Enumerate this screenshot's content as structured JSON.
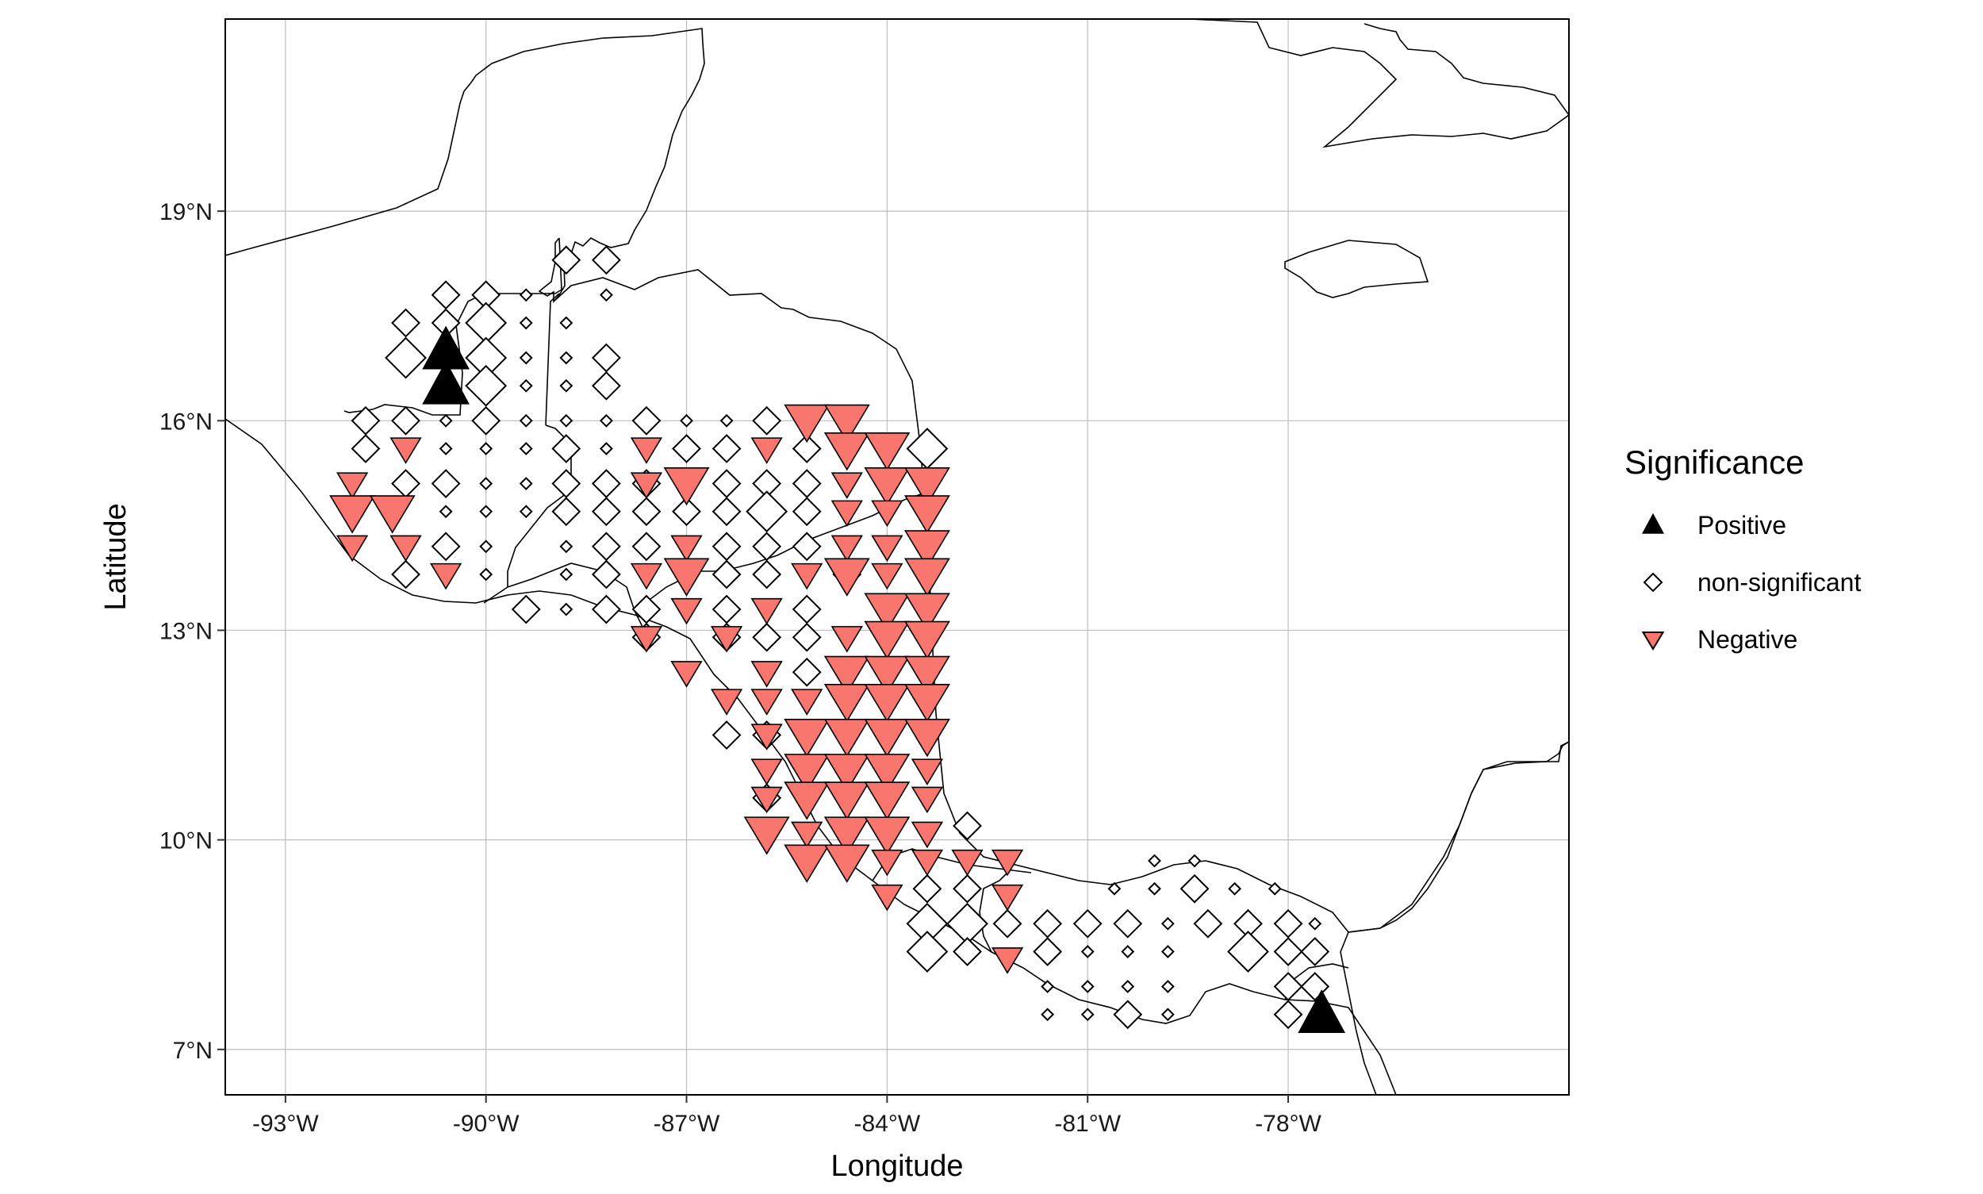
{
  "chart_data": {
    "type": "scatter",
    "title": "",
    "xlabel": "Longitude",
    "ylabel": "Latitude",
    "xlim": [
      -93.9,
      -73.8
    ],
    "ylim": [
      6.35,
      21.75
    ],
    "grid": true,
    "x_ticks": [
      -93,
      -90,
      -87,
      -84,
      -81,
      -78
    ],
    "x_tick_labels": [
      "-93°W",
      "-90°W",
      "-87°W",
      "-84°W",
      "-81°W",
      "-78°W"
    ],
    "y_ticks": [
      7,
      10,
      13,
      16,
      19
    ],
    "y_tick_labels": [
      "7°N",
      "10°N",
      "13°N",
      "16°N",
      "19°N"
    ],
    "legend": {
      "title": "Significance",
      "placement": "right",
      "entries": [
        {
          "label": "Positive",
          "shape": "triangle-up",
          "color": "#000000"
        },
        {
          "label": "non-significant",
          "shape": "diamond",
          "color": "#ffffff"
        },
        {
          "label": "Negative",
          "shape": "triangle-down",
          "color": "#f8766d"
        }
      ]
    },
    "series": [
      {
        "name": "Positive",
        "color": "#000000",
        "points": [
          [
            -90.6,
            17.0,
            3
          ],
          [
            -90.6,
            16.5,
            3
          ],
          [
            -77.5,
            7.5,
            3
          ]
        ]
      },
      {
        "name": "non-significant",
        "color": "#ffffff",
        "points": [
          [
            -91.2,
            17.4,
            2
          ],
          [
            -90.6,
            17.8,
            2
          ],
          [
            -90.0,
            17.8,
            2
          ],
          [
            -89.4,
            17.8,
            1
          ],
          [
            -88.8,
            18.3,
            2
          ],
          [
            -88.2,
            18.3,
            2
          ],
          [
            -91.2,
            16.9,
            3
          ],
          [
            -90.6,
            17.4,
            2
          ],
          [
            -90.0,
            17.4,
            3
          ],
          [
            -89.4,
            17.4,
            1
          ],
          [
            -88.8,
            17.4,
            1
          ],
          [
            -88.2,
            17.8,
            1
          ],
          [
            -90.0,
            16.9,
            3
          ],
          [
            -89.4,
            16.9,
            1
          ],
          [
            -88.8,
            16.9,
            1
          ],
          [
            -88.2,
            16.9,
            2
          ],
          [
            -90.0,
            16.5,
            3
          ],
          [
            -89.4,
            16.5,
            1
          ],
          [
            -88.8,
            16.5,
            1
          ],
          [
            -88.2,
            16.5,
            2
          ],
          [
            -91.8,
            16.0,
            2
          ],
          [
            -91.2,
            16.0,
            2
          ],
          [
            -90.6,
            16.0,
            1
          ],
          [
            -90.0,
            16.0,
            2
          ],
          [
            -89.4,
            16.0,
            1
          ],
          [
            -88.8,
            16.0,
            1
          ],
          [
            -88.2,
            16.0,
            1
          ],
          [
            -87.6,
            16.0,
            2
          ],
          [
            -87.0,
            16.0,
            1
          ],
          [
            -86.4,
            16.0,
            1
          ],
          [
            -85.8,
            16.0,
            2
          ],
          [
            -91.8,
            15.6,
            2
          ],
          [
            -90.6,
            15.6,
            1
          ],
          [
            -90.0,
            15.6,
            1
          ],
          [
            -89.4,
            15.6,
            1
          ],
          [
            -88.8,
            15.6,
            2
          ],
          [
            -88.2,
            15.6,
            1
          ],
          [
            -87.0,
            15.6,
            2
          ],
          [
            -86.4,
            15.6,
            2
          ],
          [
            -85.2,
            15.6,
            2
          ],
          [
            -83.4,
            15.6,
            3
          ],
          [
            -91.2,
            15.1,
            2
          ],
          [
            -90.6,
            15.1,
            2
          ],
          [
            -90.0,
            15.1,
            1
          ],
          [
            -89.4,
            15.1,
            1
          ],
          [
            -88.8,
            15.1,
            2
          ],
          [
            -88.2,
            15.1,
            2
          ],
          [
            -87.6,
            15.1,
            2
          ],
          [
            -86.4,
            15.1,
            2
          ],
          [
            -85.8,
            15.1,
            2
          ],
          [
            -85.2,
            15.1,
            2
          ],
          [
            -90.6,
            14.7,
            1
          ],
          [
            -90.0,
            14.7,
            1
          ],
          [
            -89.4,
            14.7,
            1
          ],
          [
            -88.8,
            14.7,
            2
          ],
          [
            -88.2,
            14.7,
            2
          ],
          [
            -87.6,
            14.7,
            2
          ],
          [
            -87.0,
            14.7,
            2
          ],
          [
            -86.4,
            14.7,
            2
          ],
          [
            -85.8,
            14.7,
            3
          ],
          [
            -85.2,
            14.7,
            2
          ],
          [
            -90.6,
            14.2,
            2
          ],
          [
            -90.0,
            14.2,
            1
          ],
          [
            -88.8,
            14.2,
            1
          ],
          [
            -88.2,
            14.2,
            2
          ],
          [
            -87.6,
            14.2,
            2
          ],
          [
            -86.4,
            14.2,
            2
          ],
          [
            -85.8,
            14.2,
            2
          ],
          [
            -85.2,
            14.2,
            2
          ],
          [
            -91.2,
            13.8,
            2
          ],
          [
            -90.0,
            13.8,
            1
          ],
          [
            -88.8,
            13.8,
            1
          ],
          [
            -88.2,
            13.8,
            2
          ],
          [
            -86.4,
            13.8,
            2
          ],
          [
            -85.8,
            13.8,
            2
          ],
          [
            -84.6,
            13.8,
            2
          ],
          [
            -89.4,
            13.3,
            2
          ],
          [
            -88.8,
            13.3,
            1
          ],
          [
            -88.2,
            13.3,
            2
          ],
          [
            -87.6,
            13.3,
            2
          ],
          [
            -86.4,
            13.3,
            2
          ],
          [
            -85.2,
            13.3,
            2
          ],
          [
            -87.6,
            12.9,
            2
          ],
          [
            -86.4,
            12.9,
            2
          ],
          [
            -85.8,
            12.9,
            2
          ],
          [
            -85.2,
            12.9,
            2
          ],
          [
            -85.2,
            12.4,
            2
          ],
          [
            -86.4,
            11.5,
            2
          ],
          [
            -85.8,
            11.5,
            2
          ],
          [
            -85.8,
            10.6,
            2
          ],
          [
            -82.8,
            10.2,
            2
          ],
          [
            -80.0,
            9.7,
            1
          ],
          [
            -79.4,
            9.7,
            1
          ],
          [
            -83.4,
            9.3,
            2
          ],
          [
            -82.8,
            9.3,
            2
          ],
          [
            -80.6,
            9.3,
            1
          ],
          [
            -80.0,
            9.3,
            1
          ],
          [
            -79.4,
            9.3,
            2
          ],
          [
            -78.8,
            9.3,
            1
          ],
          [
            -78.2,
            9.3,
            1
          ],
          [
            -83.4,
            8.8,
            3
          ],
          [
            -82.8,
            8.8,
            3
          ],
          [
            -82.2,
            8.8,
            2
          ],
          [
            -81.6,
            8.8,
            2
          ],
          [
            -81.0,
            8.8,
            2
          ],
          [
            -80.4,
            8.8,
            2
          ],
          [
            -79.8,
            8.8,
            1
          ],
          [
            -79.2,
            8.8,
            2
          ],
          [
            -78.6,
            8.8,
            2
          ],
          [
            -78.0,
            8.8,
            2
          ],
          [
            -77.6,
            8.8,
            1
          ],
          [
            -83.4,
            8.4,
            3
          ],
          [
            -82.8,
            8.4,
            2
          ],
          [
            -81.6,
            8.4,
            2
          ],
          [
            -81.0,
            8.4,
            1
          ],
          [
            -80.4,
            8.4,
            1
          ],
          [
            -79.8,
            8.4,
            1
          ],
          [
            -78.6,
            8.4,
            3
          ],
          [
            -78.0,
            8.4,
            2
          ],
          [
            -77.6,
            8.4,
            2
          ],
          [
            -81.6,
            7.9,
            1
          ],
          [
            -81.0,
            7.9,
            1
          ],
          [
            -80.4,
            7.9,
            1
          ],
          [
            -79.8,
            7.9,
            1
          ],
          [
            -78.0,
            7.9,
            2
          ],
          [
            -77.6,
            7.9,
            2
          ],
          [
            -81.6,
            7.5,
            1
          ],
          [
            -81.0,
            7.5,
            1
          ],
          [
            -80.4,
            7.5,
            2
          ],
          [
            -79.8,
            7.5,
            1
          ],
          [
            -78.0,
            7.5,
            2
          ]
        ]
      },
      {
        "name": "Negative",
        "color": "#f8766d",
        "points": [
          [
            -85.2,
            16.0,
            3
          ],
          [
            -84.6,
            16.0,
            3
          ],
          [
            -91.2,
            15.6,
            2
          ],
          [
            -87.6,
            15.6,
            2
          ],
          [
            -85.8,
            15.6,
            2
          ],
          [
            -84.6,
            15.6,
            3
          ],
          [
            -84.0,
            15.6,
            3
          ],
          [
            -92.0,
            15.1,
            2
          ],
          [
            -87.6,
            15.1,
            2
          ],
          [
            -87.0,
            15.1,
            3
          ],
          [
            -84.6,
            15.1,
            2
          ],
          [
            -84.0,
            15.1,
            3
          ],
          [
            -83.4,
            15.1,
            3
          ],
          [
            -92.0,
            14.7,
            3
          ],
          [
            -91.4,
            14.7,
            3
          ],
          [
            -84.6,
            14.7,
            2
          ],
          [
            -84.0,
            14.7,
            2
          ],
          [
            -83.4,
            14.7,
            3
          ],
          [
            -92.0,
            14.2,
            2
          ],
          [
            -91.2,
            14.2,
            2
          ],
          [
            -87.0,
            14.2,
            2
          ],
          [
            -84.6,
            14.2,
            2
          ],
          [
            -84.0,
            14.2,
            2
          ],
          [
            -83.4,
            14.2,
            3
          ],
          [
            -90.6,
            13.8,
            2
          ],
          [
            -87.6,
            13.8,
            2
          ],
          [
            -87.0,
            13.8,
            3
          ],
          [
            -85.2,
            13.8,
            2
          ],
          [
            -84.6,
            13.8,
            3
          ],
          [
            -84.0,
            13.8,
            2
          ],
          [
            -83.4,
            13.8,
            3
          ],
          [
            -87.0,
            13.3,
            2
          ],
          [
            -85.8,
            13.3,
            2
          ],
          [
            -84.0,
            13.3,
            3
          ],
          [
            -83.4,
            13.3,
            3
          ],
          [
            -87.6,
            12.9,
            2
          ],
          [
            -86.4,
            12.9,
            2
          ],
          [
            -84.6,
            12.9,
            2
          ],
          [
            -84.0,
            12.9,
            3
          ],
          [
            -83.4,
            12.9,
            3
          ],
          [
            -87.0,
            12.4,
            2
          ],
          [
            -85.8,
            12.4,
            2
          ],
          [
            -84.6,
            12.4,
            3
          ],
          [
            -84.0,
            12.4,
            3
          ],
          [
            -83.4,
            12.4,
            3
          ],
          [
            -86.4,
            12.0,
            2
          ],
          [
            -85.8,
            12.0,
            2
          ],
          [
            -85.2,
            12.0,
            2
          ],
          [
            -84.6,
            12.0,
            3
          ],
          [
            -84.0,
            12.0,
            3
          ],
          [
            -83.4,
            12.0,
            3
          ],
          [
            -85.8,
            11.5,
            2
          ],
          [
            -85.2,
            11.5,
            3
          ],
          [
            -84.6,
            11.5,
            3
          ],
          [
            -84.0,
            11.5,
            3
          ],
          [
            -83.4,
            11.5,
            3
          ],
          [
            -85.8,
            11.0,
            2
          ],
          [
            -85.2,
            11.0,
            3
          ],
          [
            -84.6,
            11.0,
            3
          ],
          [
            -84.0,
            11.0,
            3
          ],
          [
            -83.4,
            11.0,
            2
          ],
          [
            -85.8,
            10.6,
            2
          ],
          [
            -85.2,
            10.6,
            3
          ],
          [
            -84.6,
            10.6,
            3
          ],
          [
            -84.0,
            10.6,
            3
          ],
          [
            -83.4,
            10.6,
            2
          ],
          [
            -85.8,
            10.1,
            3
          ],
          [
            -85.2,
            10.1,
            2
          ],
          [
            -84.6,
            10.1,
            3
          ],
          [
            -84.0,
            10.1,
            3
          ],
          [
            -83.4,
            10.1,
            2
          ],
          [
            -85.2,
            9.7,
            3
          ],
          [
            -84.6,
            9.7,
            3
          ],
          [
            -84.0,
            9.7,
            2
          ],
          [
            -83.4,
            9.7,
            2
          ],
          [
            -82.8,
            9.7,
            2
          ],
          [
            -82.2,
            9.7,
            2
          ],
          [
            -84.0,
            9.2,
            2
          ],
          [
            -82.2,
            9.2,
            2
          ],
          [
            -82.2,
            8.3,
            2
          ]
        ]
      }
    ]
  }
}
